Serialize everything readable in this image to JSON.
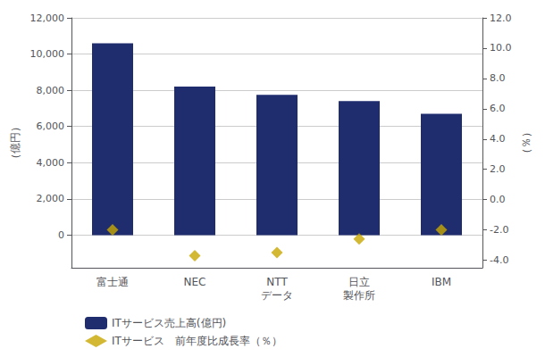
{
  "chart_data": {
    "type": "bar",
    "categories": [
      "富士通",
      "NEC",
      "NTT\nデータ",
      "日立\n製作所",
      "IBM"
    ],
    "series": [
      {
        "name": "ITサービス売上高(億円)",
        "type": "bar",
        "color": "#1f2d6e",
        "values": [
          10600,
          8200,
          7750,
          7400,
          6700
        ]
      },
      {
        "name": "ITサービス　前年度比成長率（％）",
        "type": "scatter",
        "marker": "diamond",
        "axis": "y2",
        "color": "#c8a800",
        "values": [
          -2.0,
          -3.7,
          -3.5,
          -2.6,
          -2.0
        ]
      }
    ],
    "ylabel": "（億円）",
    "y2label": "（％）",
    "ylim": [
      -1800,
      12000
    ],
    "yticks": [
      0,
      {
        "value": 2000,
        "label": "2,000"
      },
      {
        "value": 4000,
        "label": "4,000"
      },
      {
        "value": 6000,
        "label": "6,000"
      },
      {
        "value": 8000,
        "label": "8,000"
      },
      {
        "value": 10000,
        "label": "10,000"
      },
      {
        "value": 12000,
        "label": "12,000"
      }
    ],
    "y2lim": [
      -4.5,
      12.0
    ],
    "y2ticks": [
      {
        "value": -4.0,
        "label": "-4.0"
      },
      {
        "value": -2.0,
        "label": "-2.0"
      },
      {
        "value": 0.0,
        "label": "0.0"
      },
      {
        "value": 2.0,
        "label": "2.0"
      },
      {
        "value": 4.0,
        "label": "4.0"
      },
      {
        "value": 6.0,
        "label": "6.0"
      },
      {
        "value": 8.0,
        "label": "8.0"
      },
      {
        "value": 10.0,
        "label": "10.0"
      },
      {
        "value": 12.0,
        "label": "12.0"
      }
    ],
    "grid": true,
    "legend": "lower left"
  }
}
